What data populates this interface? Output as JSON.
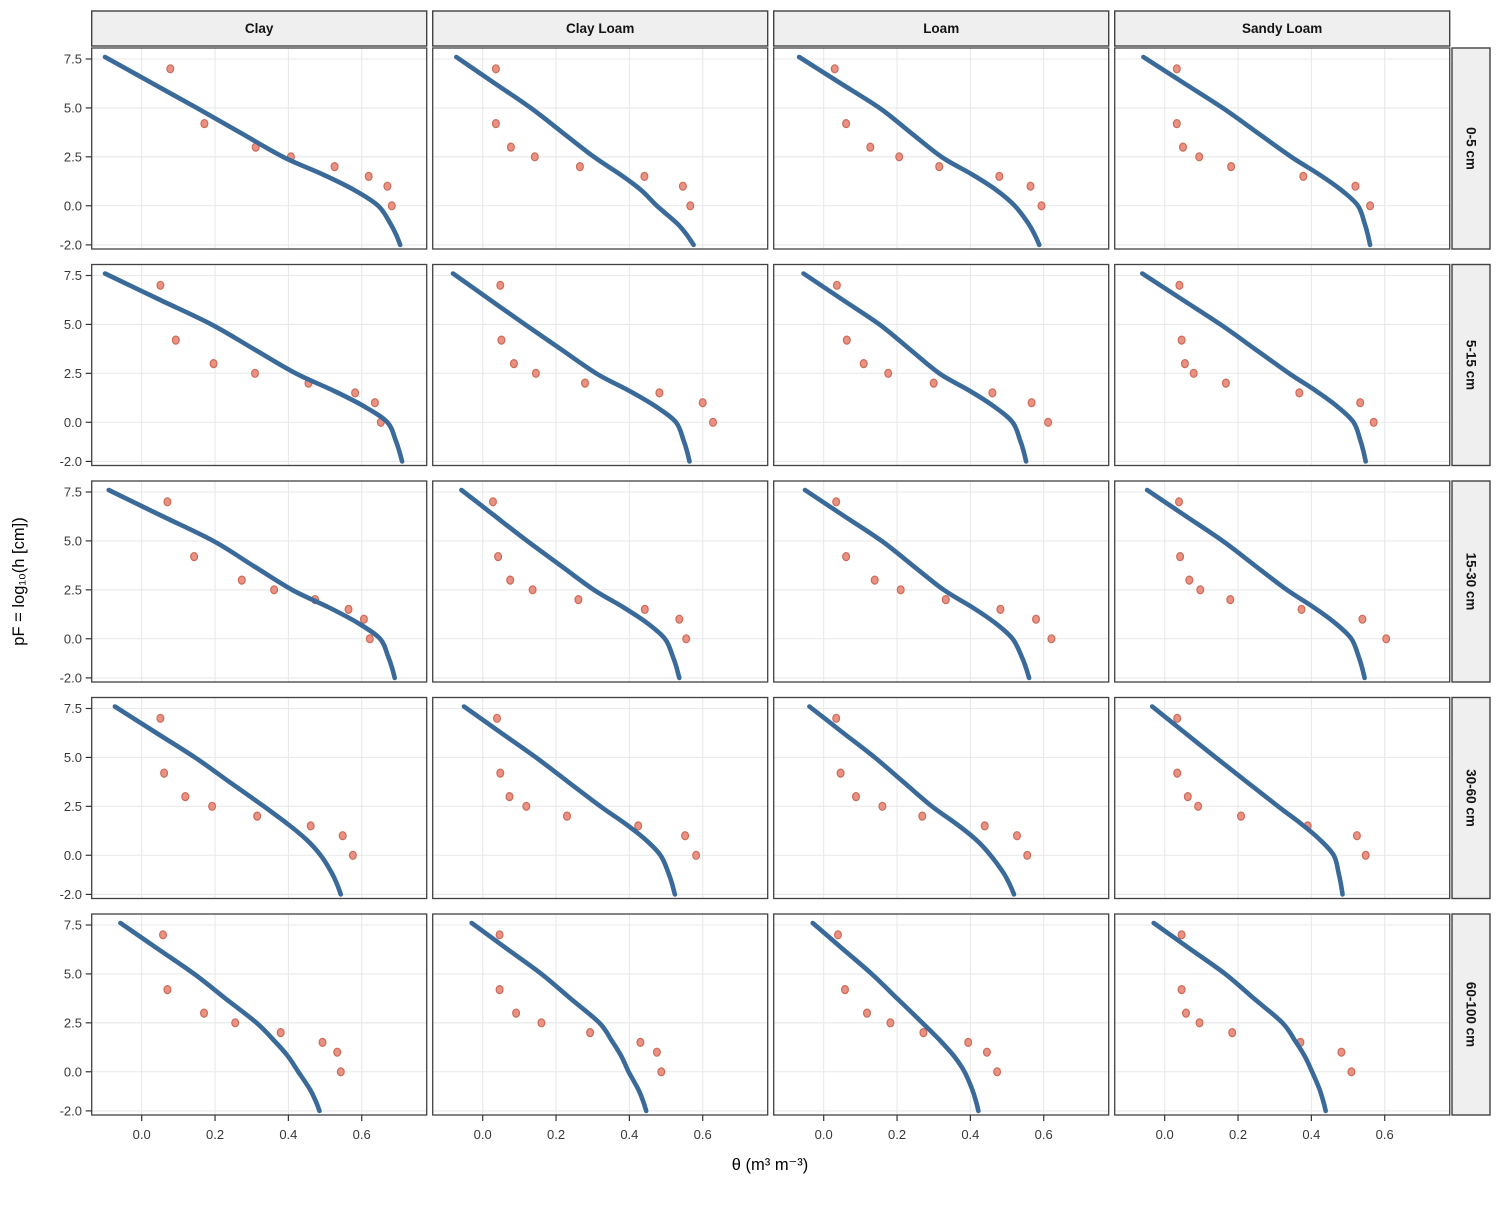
{
  "chart_data": {
    "type": "scatter",
    "subtype": "faceted grid of measured points + fitted water-retention curves (line overlay)",
    "title": "",
    "xlabel": "θ (m³ m⁻³)",
    "ylabel": "pF = log₁₀(h [cm])",
    "facet_columns": [
      "Clay",
      "Clay Loam",
      "Loam",
      "Sandy Loam"
    ],
    "facet_rows": [
      "0-5 cm",
      "5-15 cm",
      "15-30 cm",
      "30-60 cm",
      "60-100 cm"
    ],
    "x_tick_labels": [
      "0.0",
      "0.2",
      "0.4",
      "0.6"
    ],
    "x_tick_values": [
      0.0,
      0.2,
      0.4,
      0.6
    ],
    "y_tick_labels": [
      "7.5",
      "5.0",
      "2.5",
      "0.0",
      "-2.0"
    ],
    "y_tick_values": [
      7.5,
      5.0,
      2.5,
      0.0,
      -2.0
    ],
    "xlim": [
      -0.136,
      0.777
    ],
    "ylim": [
      -2.21,
      8.06
    ],
    "grid": "major gridlines only, light gray on white panels",
    "legend_position": "none",
    "series_description": {
      "points": "measured retention data (salmon dots), one dot per pF level",
      "curve": "fitted retention curve (thick blue line) from pF 7.6 down to pF -2"
    },
    "point_pf_levels": [
      7,
      4.2,
      3,
      2.5,
      2,
      1.5,
      1,
      0
    ],
    "curve_pf_anchors": [
      7.6,
      5.0,
      2.5,
      0.0,
      -2.0
    ],
    "panels": [
      {
        "soil": "Clay",
        "depth": "0-5 cm",
        "points_theta": [
          0.078,
          0.171,
          0.311,
          0.407,
          0.526,
          0.619,
          0.67,
          0.682
        ],
        "curve_theta": [
          -0.1,
          0.15,
          0.385,
          0.645,
          0.705
        ]
      },
      {
        "soil": "Clay Loam",
        "depth": "0-5 cm",
        "points_theta": [
          0.036,
          0.036,
          0.077,
          0.142,
          0.265,
          0.441,
          0.546,
          0.566
        ],
        "curve_theta": [
          -0.072,
          0.131,
          0.303,
          0.475,
          0.575
        ]
      },
      {
        "soil": "Loam",
        "depth": "0-5 cm",
        "points_theta": [
          0.03,
          0.061,
          0.127,
          0.206,
          0.315,
          0.479,
          0.564,
          0.594
        ],
        "curve_theta": [
          -0.067,
          0.152,
          0.321,
          0.521,
          0.588
        ]
      },
      {
        "soil": "Sandy Loam",
        "depth": "0-5 cm",
        "points_theta": [
          0.033,
          0.033,
          0.05,
          0.094,
          0.181,
          0.378,
          0.52,
          0.56
        ],
        "curve_theta": [
          -0.058,
          0.158,
          0.345,
          0.527,
          0.56
        ]
      },
      {
        "soil": "Clay",
        "depth": "5-15 cm",
        "points_theta": [
          0.051,
          0.093,
          0.196,
          0.309,
          0.455,
          0.582,
          0.636,
          0.652
        ],
        "curve_theta": [
          -0.1,
          0.19,
          0.42,
          0.67,
          0.71
        ]
      },
      {
        "soil": "Clay Loam",
        "depth": "5-15 cm",
        "points_theta": [
          0.048,
          0.051,
          0.085,
          0.145,
          0.279,
          0.482,
          0.6,
          0.628
        ],
        "curve_theta": [
          -0.081,
          0.115,
          0.309,
          0.527,
          0.564
        ]
      },
      {
        "soil": "Loam",
        "depth": "5-15 cm",
        "points_theta": [
          0.036,
          0.063,
          0.109,
          0.176,
          0.3,
          0.46,
          0.567,
          0.612
        ],
        "curve_theta": [
          -0.055,
          0.152,
          0.315,
          0.515,
          0.552
        ]
      },
      {
        "soil": "Sandy Loam",
        "depth": "5-15 cm",
        "points_theta": [
          0.04,
          0.046,
          0.055,
          0.079,
          0.167,
          0.367,
          0.533,
          0.57
        ],
        "curve_theta": [
          -0.061,
          0.152,
          0.339,
          0.515,
          0.548
        ]
      },
      {
        "soil": "Clay",
        "depth": "15-30 cm",
        "points_theta": [
          0.07,
          0.143,
          0.273,
          0.361,
          0.473,
          0.564,
          0.606,
          0.622
        ],
        "curve_theta": [
          -0.09,
          0.195,
          0.41,
          0.65,
          0.69
        ]
      },
      {
        "soil": "Clay Loam",
        "depth": "15-30 cm",
        "points_theta": [
          0.028,
          0.042,
          0.075,
          0.136,
          0.261,
          0.442,
          0.536,
          0.555
        ],
        "curve_theta": [
          -0.058,
          0.121,
          0.303,
          0.497,
          0.536
        ]
      },
      {
        "soil": "Loam",
        "depth": "15-30 cm",
        "points_theta": [
          0.034,
          0.061,
          0.139,
          0.21,
          0.333,
          0.482,
          0.579,
          0.621
        ],
        "curve_theta": [
          -0.051,
          0.158,
          0.327,
          0.515,
          0.56
        ]
      },
      {
        "soil": "Sandy Loam",
        "depth": "15-30 cm",
        "points_theta": [
          0.039,
          0.042,
          0.067,
          0.097,
          0.179,
          0.373,
          0.539,
          0.604
        ],
        "curve_theta": [
          -0.048,
          0.158,
          0.333,
          0.509,
          0.545
        ]
      },
      {
        "soil": "Clay",
        "depth": "30-60 cm",
        "points_theta": [
          0.051,
          0.061,
          0.119,
          0.192,
          0.315,
          0.461,
          0.548,
          0.576
        ],
        "curve_theta": [
          -0.073,
          0.145,
          0.333,
          0.488,
          0.543
        ]
      },
      {
        "soil": "Clay Loam",
        "depth": "30-60 cm",
        "points_theta": [
          0.039,
          0.048,
          0.073,
          0.119,
          0.23,
          0.424,
          0.552,
          0.582
        ],
        "curve_theta": [
          -0.051,
          0.145,
          0.321,
          0.485,
          0.524
        ]
      },
      {
        "soil": "Loam",
        "depth": "30-60 cm",
        "points_theta": [
          0.034,
          0.046,
          0.088,
          0.16,
          0.269,
          0.439,
          0.527,
          0.555
        ],
        "curve_theta": [
          -0.039,
          0.139,
          0.295,
          0.455,
          0.519
        ]
      },
      {
        "soil": "Sandy Loam",
        "depth": "30-60 cm",
        "points_theta": [
          0.034,
          0.034,
          0.063,
          0.091,
          0.208,
          0.39,
          0.524,
          0.548
        ],
        "curve_theta": [
          -0.034,
          0.139,
          0.309,
          0.461,
          0.485
        ]
      },
      {
        "soil": "Clay",
        "depth": "60-100 cm",
        "points_theta": [
          0.058,
          0.07,
          0.17,
          0.255,
          0.379,
          0.493,
          0.533,
          0.543
        ],
        "curve_theta": [
          -0.058,
          0.143,
          0.313,
          0.427,
          0.485
        ]
      },
      {
        "soil": "Clay Loam",
        "depth": "60-100 cm",
        "points_theta": [
          0.046,
          0.046,
          0.091,
          0.16,
          0.293,
          0.43,
          0.475,
          0.487
        ],
        "curve_theta": [
          -0.03,
          0.16,
          0.318,
          0.398,
          0.446
        ]
      },
      {
        "soil": "Loam",
        "depth": "60-100 cm",
        "points_theta": [
          0.039,
          0.058,
          0.118,
          0.182,
          0.272,
          0.394,
          0.445,
          0.473
        ],
        "curve_theta": [
          -0.03,
          0.131,
          0.269,
          0.384,
          0.422
        ]
      },
      {
        "soil": "Sandy Loam",
        "depth": "60-100 cm",
        "points_theta": [
          0.046,
          0.046,
          0.058,
          0.095,
          0.184,
          0.37,
          0.482,
          0.509
        ],
        "curve_theta": [
          -0.03,
          0.165,
          0.321,
          0.402,
          0.439
        ]
      }
    ]
  },
  "colors": {
    "curve": "#3A6A9A",
    "point_fill": "#E99182",
    "point_stroke": "#CE6B57",
    "grid": "#E9E9E9",
    "panel_background": "#FFFFFF",
    "panel_border": "#424242",
    "strip_background": "#EFEFEF",
    "strip_border": "#424242",
    "tick_mark": "#333333",
    "tick_text": "#383838",
    "axis_title_text": "#000000"
  }
}
